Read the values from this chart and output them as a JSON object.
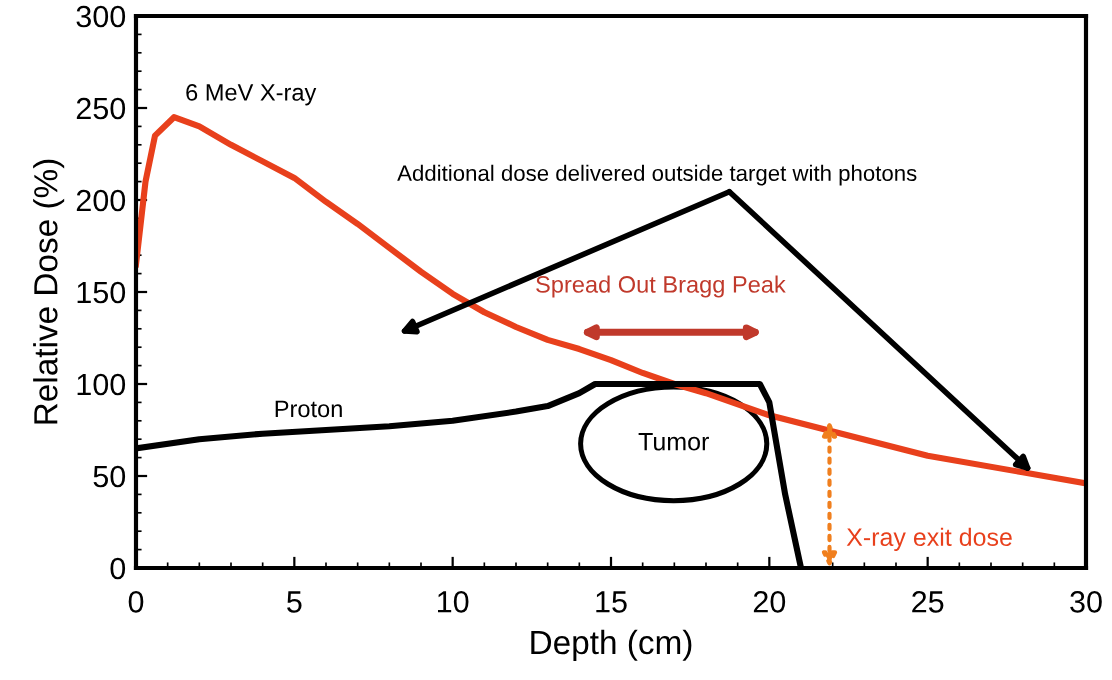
{
  "chart_data": {
    "type": "line",
    "xlabel": "Depth (cm)",
    "ylabel": "Relative Dose (%)",
    "xlim": [
      0,
      30
    ],
    "ylim": [
      0,
      300
    ],
    "xticks": [
      0,
      5,
      10,
      15,
      20,
      25,
      30
    ],
    "yticks": [
      0,
      50,
      100,
      150,
      200,
      250,
      300
    ],
    "grid": false,
    "legend": false,
    "marker": "none",
    "line_style": "solid",
    "series": [
      {
        "name": "6 MeV X-ray",
        "color": "#e8401c",
        "x": [
          0,
          0.3,
          0.6,
          1.2,
          2,
          3,
          4,
          5,
          6,
          7,
          8,
          9,
          10,
          11,
          12,
          13,
          14,
          15,
          16,
          17,
          18,
          20,
          22.5,
          25,
          28,
          30
        ],
        "values": [
          165,
          210,
          235,
          245,
          240,
          230,
          221,
          212,
          199,
          187,
          174,
          161,
          149,
          139,
          131,
          124,
          119,
          113,
          106,
          100,
          95,
          83,
          72,
          61,
          52,
          46
        ]
      },
      {
        "name": "Proton",
        "color": "#000000",
        "x": [
          0,
          2,
          4,
          6,
          8,
          10,
          12,
          13,
          14,
          14.5,
          19.7,
          20,
          20.5,
          21
        ],
        "values": [
          65,
          70,
          73,
          75,
          77,
          80,
          85,
          88,
          95,
          100,
          100,
          90,
          40,
          0
        ]
      }
    ],
    "annotations": [
      {
        "text": "Additional dose delivered outside target with photons",
        "x": 28.3,
        "y": 52
      },
      "Spread Out Bragg Peak",
      "Tumor",
      {
        "text": "X-ray exit dose",
        "x": 21.9,
        "y": 80
      }
    ]
  }
}
